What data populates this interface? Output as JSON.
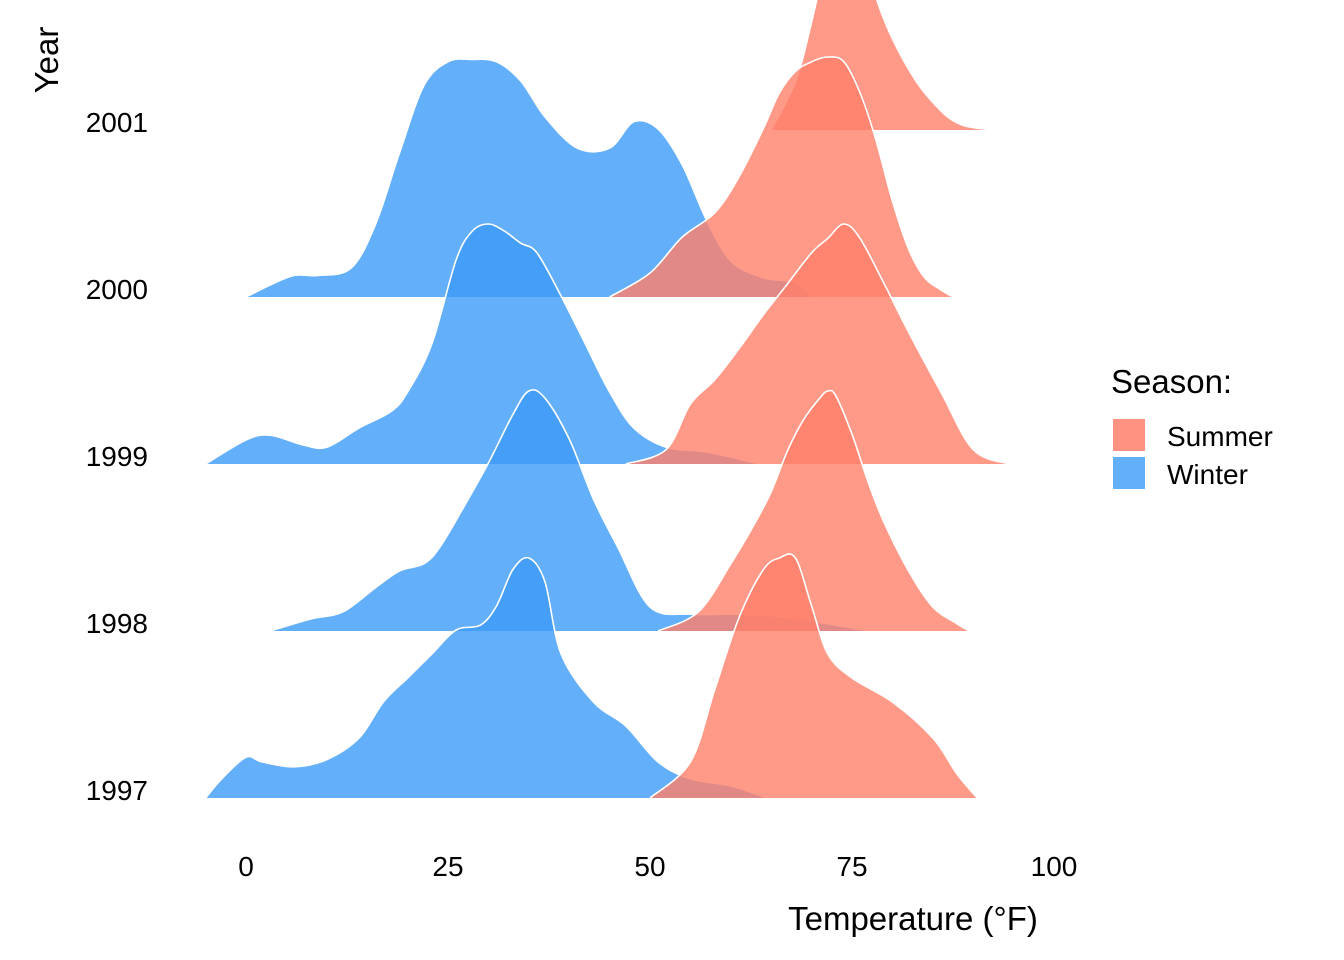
{
  "chart_data": {
    "type": "ridgeline",
    "xlabel": "Temperature (°F)",
    "ylabel": "Year",
    "x_ticks": [
      0,
      25,
      50,
      75,
      100
    ],
    "y_categories": [
      "1997",
      "1998",
      "1999",
      "2000",
      "2001"
    ],
    "xlim": [
      -5,
      101
    ],
    "legend": {
      "title": "Season:",
      "position": "right",
      "entries": [
        "Summer",
        "Winter"
      ]
    },
    "colors": {
      "Summer": "#FF7F6A",
      "Winter": "#3D9BF8"
    },
    "grid": false,
    "series": [
      {
        "name": "Winter",
        "ridges": [
          {
            "year": "1997",
            "x": [
              -5,
              -3,
              0,
              2,
              6,
              10,
              14,
              17,
              20,
              23,
              26,
              29,
              31,
              33,
              35,
              37,
              39,
              43,
              47,
              51,
              55,
              60,
              64.5
            ],
            "density": [
              0.0,
              0.08,
              0.17,
              0.15,
              0.13,
              0.16,
              0.25,
              0.4,
              0.5,
              0.6,
              0.7,
              0.72,
              0.8,
              0.95,
              1.0,
              0.9,
              0.6,
              0.4,
              0.3,
              0.15,
              0.08,
              0.05,
              0.0
            ]
          },
          {
            "year": "1998",
            "x": [
              3,
              8,
              12,
              16,
              19,
              22,
              24,
              27,
              30,
              33,
              35,
              37,
              40,
              43,
              46,
              50,
              55,
              60,
              66,
              72,
              77
            ],
            "density": [
              0.0,
              0.05,
              0.08,
              0.18,
              0.25,
              0.28,
              0.35,
              0.52,
              0.7,
              0.9,
              1.0,
              0.97,
              0.8,
              0.55,
              0.35,
              0.1,
              0.07,
              0.07,
              0.06,
              0.03,
              0.0
            ]
          },
          {
            "year": "1999",
            "x": [
              -5,
              0,
              3,
              7,
              10,
              14,
              18,
              20,
              23,
              26,
              28,
              30,
              32,
              34,
              36,
              39,
              42,
              45,
              48,
              52,
              57,
              63.5
            ],
            "density": [
              0.0,
              0.1,
              0.12,
              0.08,
              0.07,
              0.15,
              0.22,
              0.3,
              0.5,
              0.85,
              0.97,
              1.0,
              0.97,
              0.92,
              0.88,
              0.7,
              0.5,
              0.3,
              0.15,
              0.07,
              0.05,
              0.0
            ]
          },
          {
            "year": "2000",
            "x": [
              0,
              3,
              6,
              9,
              13,
              16,
              19,
              22,
              25,
              28,
              31,
              34,
              37,
              41,
              45,
              48,
              51,
              54,
              57,
              60,
              64,
              68,
              70
            ],
            "density": [
              0.0,
              0.05,
              0.09,
              0.09,
              0.12,
              0.3,
              0.6,
              0.88,
              0.98,
              0.99,
              0.98,
              0.9,
              0.75,
              0.62,
              0.62,
              0.73,
              0.7,
              0.55,
              0.32,
              0.15,
              0.08,
              0.06,
              0.0
            ]
          }
        ]
      },
      {
        "name": "Summer",
        "ridges": [
          {
            "year": "1997",
            "x": [
              50,
              55,
              58,
              61,
              64,
              66,
              68,
              70,
              72,
              75,
              80,
              85,
              88,
              90.5
            ],
            "density": [
              0.0,
              0.15,
              0.45,
              0.75,
              0.95,
              1.0,
              1.0,
              0.8,
              0.6,
              0.5,
              0.4,
              0.25,
              0.1,
              0.0
            ]
          },
          {
            "year": "1998",
            "x": [
              51,
              56,
              60,
              63,
              65,
              67,
              69,
              71,
              72,
              73,
              75,
              77,
              79,
              82,
              85,
              88,
              89.5
            ],
            "density": [
              0.0,
              0.08,
              0.28,
              0.45,
              0.58,
              0.75,
              0.88,
              0.97,
              1.0,
              0.98,
              0.82,
              0.62,
              0.45,
              0.25,
              0.1,
              0.03,
              0.0
            ]
          },
          {
            "year": "1999",
            "x": [
              47,
              52,
              55,
              58,
              61,
              64,
              67,
              70,
              72,
              74,
              76,
              79,
              82,
              86,
              90,
              94.5
            ],
            "density": [
              0.0,
              0.06,
              0.25,
              0.35,
              0.48,
              0.62,
              0.75,
              0.88,
              0.94,
              1.0,
              0.94,
              0.75,
              0.55,
              0.3,
              0.06,
              0.0
            ]
          },
          {
            "year": "2000",
            "x": [
              45,
              50,
              54,
              58,
              61,
              64,
              66,
              68,
              70,
              72,
              74,
              76,
              78,
              80,
              82,
              84,
              86,
              87.5
            ],
            "density": [
              0.0,
              0.1,
              0.25,
              0.35,
              0.5,
              0.7,
              0.85,
              0.94,
              0.98,
              1.0,
              0.98,
              0.85,
              0.65,
              0.4,
              0.2,
              0.08,
              0.03,
              0.0
            ]
          },
          {
            "year": "2001",
            "x": [
              65,
              68,
              70,
              72,
              73,
              74,
              75,
              76,
              78,
              80,
              83,
              86,
              88,
              90,
              93
            ],
            "density": [
              0.0,
              0.2,
              0.45,
              0.75,
              0.9,
              1.0,
              0.96,
              0.8,
              0.55,
              0.38,
              0.2,
              0.08,
              0.03,
              0.01,
              0.0
            ]
          }
        ]
      }
    ]
  }
}
